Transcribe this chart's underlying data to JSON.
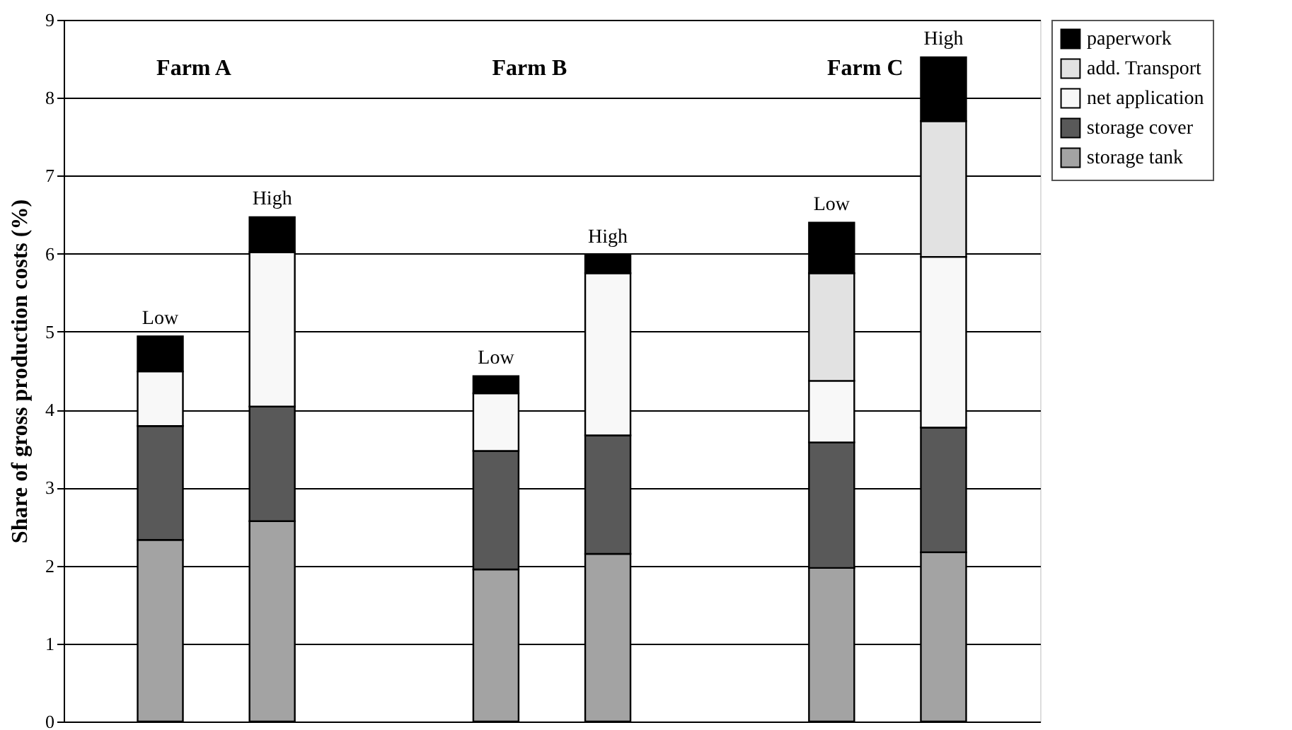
{
  "chart_data": {
    "type": "bar",
    "stacked": true,
    "ylabel": "Share of gross production costs (%)",
    "categories": [
      null,
      null,
      null,
      null,
      null,
      null
    ],
    "annotations": [
      "Farm A",
      "Farm B",
      "Farm C",
      {
        "text": "Low",
        "y": 4.94
      },
      {
        "text": "High",
        "y": 6.47
      },
      {
        "text": "Low",
        "y": 4.43
      },
      {
        "text": "High",
        "y": 5.98
      },
      {
        "text": "Low",
        "y": 6.4
      },
      {
        "text": "High",
        "y": 8.52
      }
    ],
    "series": [
      {
        "name": "storage tank",
        "color": "#a3a3a3",
        "values": [
          2.33,
          2.57,
          1.95,
          2.15,
          1.97,
          2.17
        ]
      },
      {
        "name": "storage cover",
        "color": "#595959",
        "values": [
          1.46,
          1.47,
          1.52,
          1.52,
          1.61,
          1.6
        ]
      },
      {
        "name": "net application",
        "color": "#f8f8f8",
        "values": [
          0.7,
          1.98,
          0.74,
          2.08,
          0.79,
          2.19
        ]
      },
      {
        "name": "add. Transport",
        "color": "#e2e2e2",
        "values": [
          null,
          null,
          null,
          null,
          1.38,
          1.74
        ]
      },
      {
        "name": "paperwork",
        "color": "#000000",
        "values": [
          0.45,
          0.45,
          0.22,
          0.23,
          0.65,
          0.82
        ]
      }
    ],
    "ylim": [
      0,
      9
    ],
    "yticks": [
      0,
      1,
      2,
      3,
      4,
      5,
      6,
      7,
      8,
      9
    ],
    "grid": "y",
    "legend": "right",
    "tick_labels": "y"
  }
}
